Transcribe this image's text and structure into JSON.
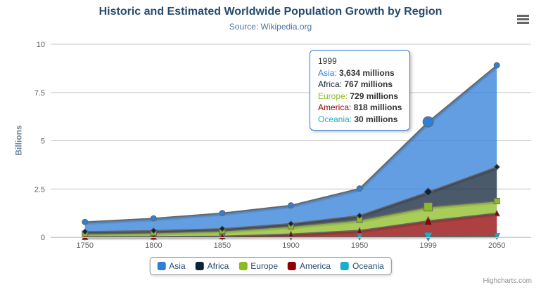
{
  "chart_data": {
    "type": "area",
    "stacking": "normal",
    "title": "Historic and Estimated Worldwide Population Growth by Region",
    "subtitle": "Source: Wikipedia.org",
    "categories": [
      "1750",
      "1800",
      "1850",
      "1900",
      "1950",
      "1999",
      "2050"
    ],
    "series": [
      {
        "name": "Asia",
        "color": "#2f7ed8",
        "marker": "circle",
        "values": [
          502,
          635,
          809,
          947,
          1402,
          3634,
          5268
        ]
      },
      {
        "name": "Africa",
        "color": "#0d233a",
        "marker": "diamond",
        "values": [
          106,
          107,
          111,
          133,
          221,
          767,
          1766
        ]
      },
      {
        "name": "Europe",
        "color": "#8bbc21",
        "marker": "square",
        "values": [
          163,
          203,
          276,
          408,
          547,
          729,
          628
        ]
      },
      {
        "name": "America",
        "color": "#910000",
        "marker": "triangle",
        "values": [
          18,
          31,
          54,
          156,
          339,
          818,
          1201
        ]
      },
      {
        "name": "Oceania",
        "color": "#1aadce",
        "marker": "triangle-down",
        "values": [
          2,
          2,
          2,
          6,
          13,
          30,
          46
        ]
      }
    ],
    "values_unit": "millions",
    "xlabel": "",
    "ylabel": "Billions",
    "ylim": [
      0,
      10
    ],
    "yticks": [
      0,
      2.5,
      5,
      7.5,
      10
    ],
    "ytick_labels": [
      "0",
      "2.5",
      "5",
      "7.5",
      "10"
    ],
    "grid": true,
    "legend_position": "bottom",
    "hover_index": 5,
    "line_color": "#666666",
    "fill_opacity": 0.75,
    "gridline_color": "#c8c8c8",
    "axis_line_color": "#c0d0e0"
  },
  "tooltip": {
    "header": "1999",
    "border_color": "#2f7ed8",
    "rows": [
      {
        "name": "Asia",
        "value": "3,634 millions"
      },
      {
        "name": "Africa",
        "value": "767 millions"
      },
      {
        "name": "Europe",
        "value": "729 millions"
      },
      {
        "name": "America",
        "value": "818 millions"
      },
      {
        "name": "Oceania",
        "value": "30 millions"
      }
    ]
  },
  "credits": "Highcharts.com"
}
